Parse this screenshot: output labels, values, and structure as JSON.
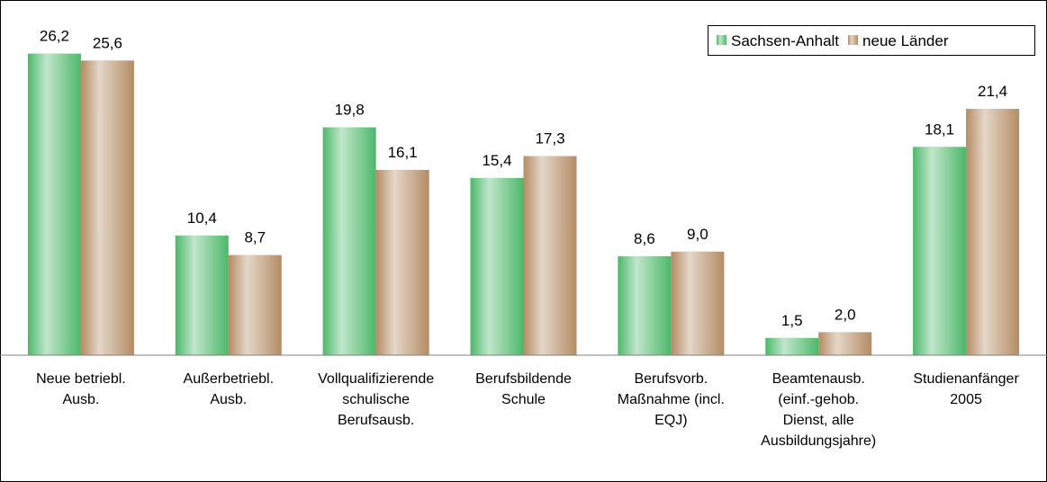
{
  "chart_data": {
    "type": "bar",
    "categories": [
      "Neue betriebl.\nAusb.",
      "Außerbetriebl.\nAusb.",
      "Vollqualifizierende\nschulische\nBerufsausb.",
      "Berufsbildende\nSchule",
      "Berufsvorb.\nMaßnahme (incl.\nEQJ)",
      "Beamtenausb.\n(einf.-gehob.\nDienst, alle\nAusbildungsjahre)",
      "Studienanfänger\n2005"
    ],
    "series": [
      {
        "name": "Sachsen-Anhalt",
        "color": "#4cb86a",
        "values": [
          26.2,
          10.4,
          19.8,
          15.4,
          8.6,
          1.5,
          18.1
        ],
        "value_labels": [
          "26,2",
          "10,4",
          "19,8",
          "15,4",
          "8,6",
          "1,5",
          "18,1"
        ]
      },
      {
        "name": "neue Länder",
        "color": "#b48c64",
        "values": [
          25.6,
          8.7,
          16.1,
          17.3,
          9.0,
          2.0,
          21.4
        ],
        "value_labels": [
          "25,6",
          "8,7",
          "16,1",
          "17,3",
          "9,0",
          "2,0",
          "21,4"
        ]
      }
    ],
    "ylim": [
      0,
      30
    ],
    "legend": "top-right"
  }
}
